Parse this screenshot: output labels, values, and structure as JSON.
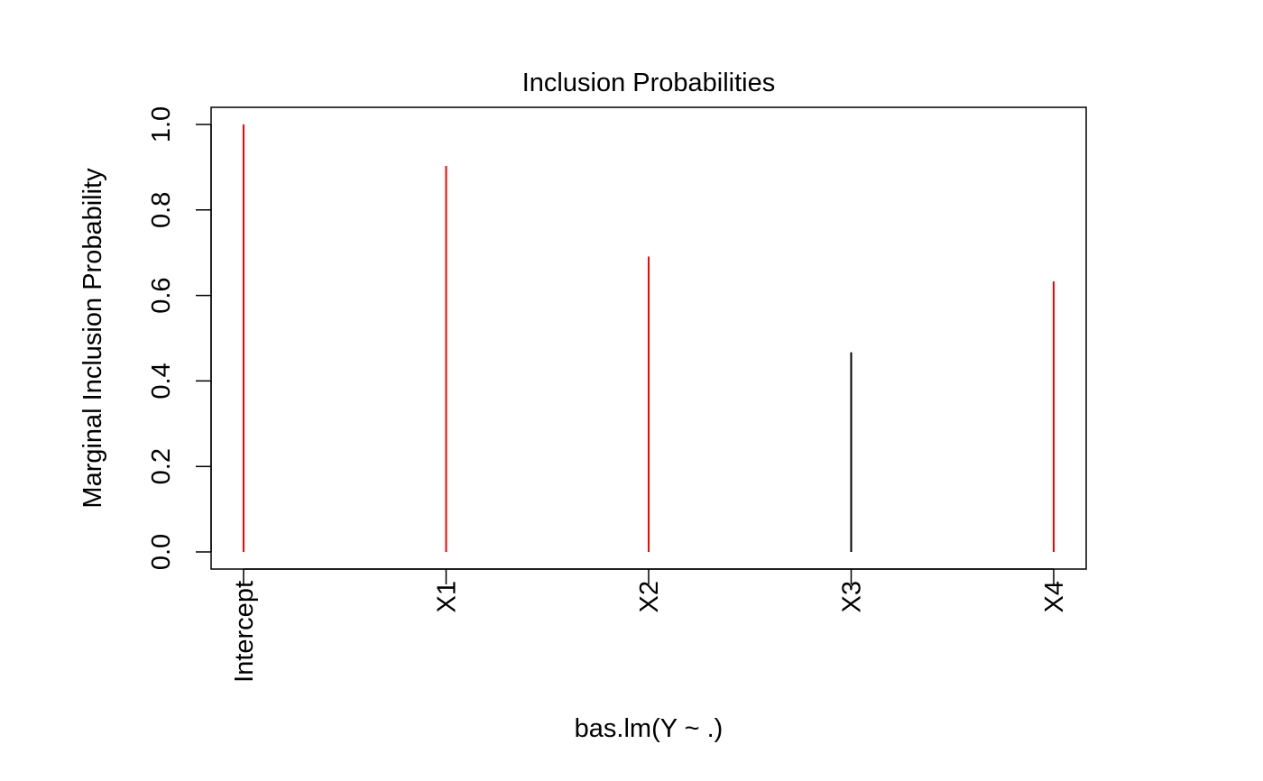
{
  "chart_data": {
    "type": "bar",
    "title": "Inclusion Probabilities",
    "xlabel": "bas.lm(Y ~ .)",
    "ylabel": "Marginal Inclusion Probability",
    "categories": [
      "Intercept",
      "X1",
      "X2",
      "X3",
      "X4"
    ],
    "values": [
      1.0,
      0.903,
      0.691,
      0.467,
      0.633
    ],
    "ylim": [
      0,
      1.0
    ],
    "yticks": [
      "0.0",
      "0.2",
      "0.4",
      "0.6",
      "0.8",
      "1.0"
    ],
    "grid": false,
    "legend": "none",
    "colors": {
      "included": "#ff0000",
      "excluded": "#000000",
      "axis": "#000000"
    },
    "threshold": 0.5
  }
}
